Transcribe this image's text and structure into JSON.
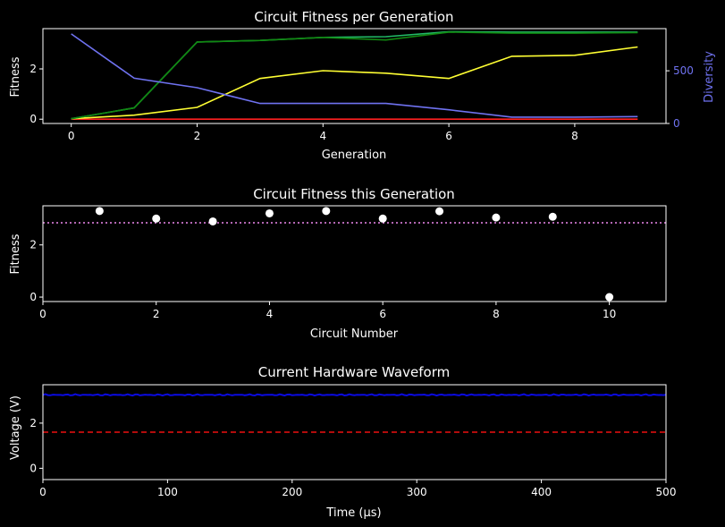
{
  "chart_data": [
    {
      "type": "line",
      "title": "Circuit Fitness per Generation",
      "xlabel": "Generation",
      "ylabel": "Fitness",
      "y2label": "Diversity",
      "xlim": [
        -0.45,
        9.45
      ],
      "ylim": [
        -0.17,
        3.6
      ],
      "y2lim": [
        0,
        900
      ],
      "xticks": [
        0,
        2,
        4,
        6,
        8
      ],
      "yticks": [
        0,
        2
      ],
      "y2ticks": [
        0,
        500
      ],
      "x": [
        0,
        1,
        2,
        3,
        4,
        5,
        6,
        7,
        8,
        9
      ],
      "series": [
        {
          "color": "#ff2020",
          "axis": "left",
          "values": [
            0.0,
            0.0,
            0.0,
            0.0,
            0.0,
            0.0,
            0.0,
            0.0,
            0.0,
            0.0
          ]
        },
        {
          "color": "#ffff33",
          "axis": "left",
          "values": [
            0.02,
            0.16,
            0.47,
            1.62,
            1.93,
            1.83,
            1.62,
            2.5,
            2.54,
            2.87
          ]
        },
        {
          "color": "#22bb66",
          "axis": "left",
          "values": [
            0.02,
            0.45,
            3.07,
            3.13,
            3.25,
            3.28,
            3.48,
            3.46,
            3.46,
            3.46
          ]
        },
        {
          "color": "#118811",
          "axis": "left",
          "values": [
            0.02,
            0.45,
            3.07,
            3.13,
            3.25,
            3.15,
            3.46,
            3.42,
            3.42,
            3.44
          ]
        },
        {
          "color": "#6f72f0",
          "axis": "right",
          "values": [
            850,
            430,
            340,
            190,
            190,
            190,
            130,
            60,
            60,
            65
          ]
        }
      ],
      "grid": false
    },
    {
      "type": "scatter",
      "title": "Circuit Fitness this Generation",
      "xlabel": "Circuit Number",
      "ylabel": "Fitness",
      "xlim": [
        0,
        11
      ],
      "ylim": [
        -0.17,
        3.5
      ],
      "xticks": [
        0,
        2,
        4,
        6,
        8,
        10
      ],
      "yticks": [
        0,
        2
      ],
      "points": [
        {
          "x": 1,
          "y": 3.3
        },
        {
          "x": 2,
          "y": 3.01
        },
        {
          "x": 3,
          "y": 2.9
        },
        {
          "x": 4,
          "y": 3.21
        },
        {
          "x": 5,
          "y": 3.3
        },
        {
          "x": 6,
          "y": 3.01
        },
        {
          "x": 7,
          "y": 3.29
        },
        {
          "x": 8,
          "y": 3.05
        },
        {
          "x": 9,
          "y": 3.08
        },
        {
          "x": 10,
          "y": 0.0
        }
      ],
      "point_color": "#ffffff",
      "mean_line": {
        "y": 2.85,
        "color": "#ee88ee",
        "style": "dotted"
      },
      "grid": false
    },
    {
      "type": "line",
      "title": "Current Hardware Waveform",
      "xlabel": "Time (µs)",
      "ylabel": "Voltage (V)",
      "xlim": [
        0,
        500
      ],
      "ylim": [
        -0.5,
        3.7
      ],
      "xticks": [
        0,
        100,
        200,
        300,
        400,
        500
      ],
      "yticks": [
        0,
        2
      ],
      "waveform": {
        "color": "#0a0ae0",
        "start": 0,
        "end": 500,
        "level": 3.25,
        "ripple": 0.03
      },
      "reference_line": {
        "y": 1.6,
        "color": "#ee1111",
        "style": "dashed"
      },
      "grid": false
    }
  ]
}
